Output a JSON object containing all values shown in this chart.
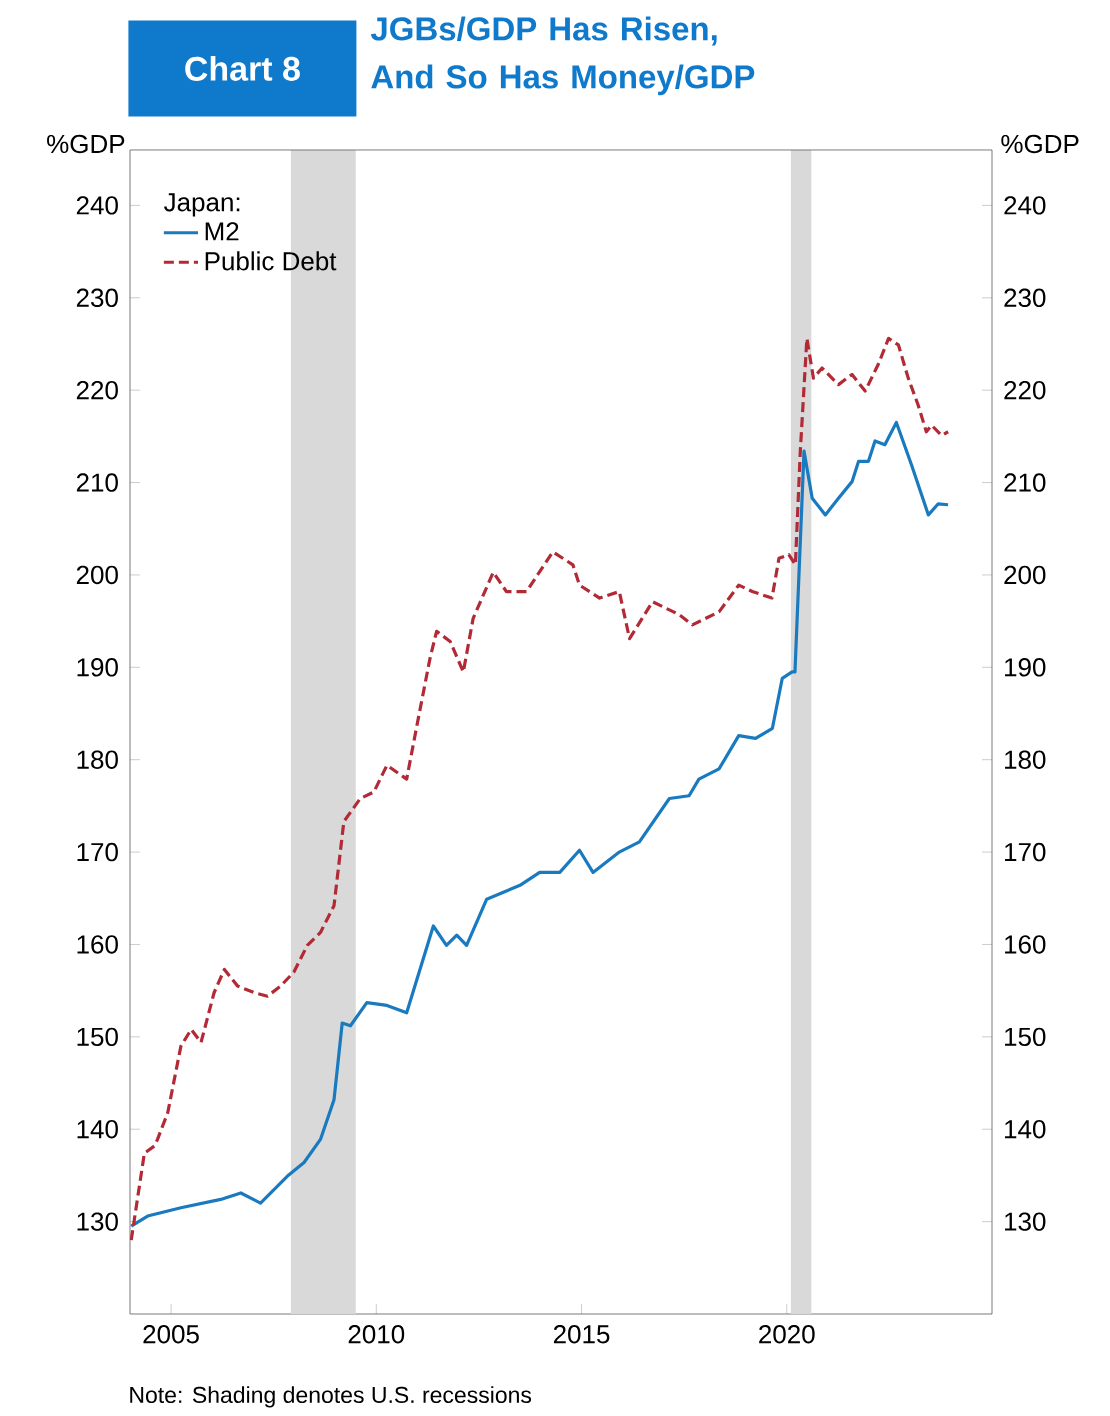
{
  "chart_data": {
    "type": "line",
    "title": "JGBs/GDP Has Risen, And So Has Money/GDP",
    "ylabel": "%GDP",
    "y2label": "%GDP",
    "legend_title": "Japan:",
    "annotations": [
      "Chart 8",
      "Note: Shading denotes U.S. recessions"
    ],
    "xlim": [
      2004,
      2025
    ],
    "xticks": [
      2005,
      2010,
      2015,
      2020
    ],
    "ylim": [
      120,
      246
    ],
    "yticks": [
      130,
      140,
      150,
      160,
      170,
      180,
      190,
      200,
      210,
      220,
      230,
      240
    ],
    "y2lim": [
      120,
      246
    ],
    "y2ticks": [
      130,
      140,
      150,
      160,
      170,
      180,
      190,
      200,
      210,
      220,
      230,
      240
    ],
    "legend": "top left",
    "grid": false,
    "bands": [
      {
        "axis": "x",
        "from": 2007.92,
        "to": 2009.5,
        "color": "#d9d9d9"
      },
      {
        "axis": "x",
        "from": 2020.1,
        "to": 2020.6,
        "color": "#d9d9d9"
      }
    ],
    "series": [
      {
        "name": "M2",
        "color": "#1a7abf",
        "line_style": "solid",
        "x": [
          2004.03,
          2004.43,
          2005.24,
          2006.21,
          2006.7,
          2007.18,
          2007.83,
          2008.24,
          2008.64,
          2008.97,
          2009.17,
          2009.37,
          2009.77,
          2010.26,
          2010.74,
          2011.39,
          2011.71,
          2011.96,
          2012.2,
          2012.69,
          2013.5,
          2013.98,
          2014.47,
          2014.95,
          2015.28,
          2015.92,
          2016.41,
          2017.14,
          2017.62,
          2017.86,
          2018.35,
          2018.83,
          2019.24,
          2019.65,
          2019.89,
          2020.13,
          2020.2,
          2020.42,
          2020.62,
          2020.94,
          2021.26,
          2021.59,
          2021.75,
          2021.99,
          2022.15,
          2022.39,
          2022.67,
          2023.04,
          2023.45,
          2023.69,
          2023.93
        ],
        "values": [
          129.5,
          130.6,
          131.5,
          132.4,
          133.1,
          132.0,
          134.9,
          136.4,
          138.9,
          143.2,
          151.5,
          151.2,
          153.7,
          153.4,
          152.6,
          162.0,
          159.9,
          161.0,
          159.9,
          164.9,
          166.4,
          167.8,
          167.8,
          170.2,
          167.8,
          170.0,
          171.1,
          175.8,
          176.1,
          177.9,
          179.0,
          182.6,
          182.3,
          183.4,
          188.8,
          189.5,
          189.5,
          213.4,
          208.3,
          206.5,
          208.3,
          210.1,
          212.3,
          212.3,
          214.5,
          214.1,
          216.5,
          211.9,
          206.5,
          207.7,
          207.6
        ]
      },
      {
        "name": "Public Debt",
        "color": "#b22a35",
        "line_style": "dashed",
        "x": [
          2004.03,
          2004.35,
          2004.6,
          2004.67,
          2004.92,
          2005.24,
          2005.49,
          2005.73,
          2006.05,
          2006.3,
          2006.62,
          2007.02,
          2007.35,
          2007.67,
          2007.99,
          2008.32,
          2008.64,
          2008.97,
          2009.21,
          2009.61,
          2009.94,
          2010.26,
          2010.74,
          2010.99,
          2011.31,
          2011.47,
          2011.8,
          2012.12,
          2012.36,
          2012.85,
          2013.17,
          2013.66,
          2014.3,
          2014.79,
          2014.95,
          2015.44,
          2015.92,
          2016.17,
          2016.73,
          2017.38,
          2017.7,
          2018.35,
          2018.83,
          2019.16,
          2019.64,
          2019.81,
          2020.05,
          2020.21,
          2020.33,
          2020.49,
          2020.65,
          2020.86,
          2021.26,
          2021.59,
          2021.91,
          2022.23,
          2022.48,
          2022.72,
          2022.96,
          2023.2,
          2023.4,
          2023.53,
          2023.77,
          2023.93
        ],
        "values": [
          128.0,
          137.4,
          138.2,
          138.9,
          141.8,
          149.0,
          150.8,
          149.4,
          154.8,
          157.3,
          155.5,
          154.8,
          154.4,
          155.5,
          157.0,
          159.9,
          161.3,
          164.2,
          173.3,
          175.8,
          176.5,
          179.4,
          177.9,
          183.7,
          191.0,
          193.9,
          192.8,
          189.5,
          195.3,
          200.3,
          198.2,
          198.2,
          202.5,
          201.1,
          198.9,
          197.5,
          198.2,
          193.1,
          197.1,
          195.7,
          194.6,
          196.0,
          198.9,
          198.2,
          197.5,
          201.8,
          202.2,
          201.1,
          213.4,
          225.6,
          221.3,
          222.4,
          220.6,
          221.7,
          219.9,
          222.8,
          225.6,
          224.9,
          221.3,
          218.4,
          215.5,
          216.2,
          215.1,
          215.5
        ]
      }
    ]
  }
}
